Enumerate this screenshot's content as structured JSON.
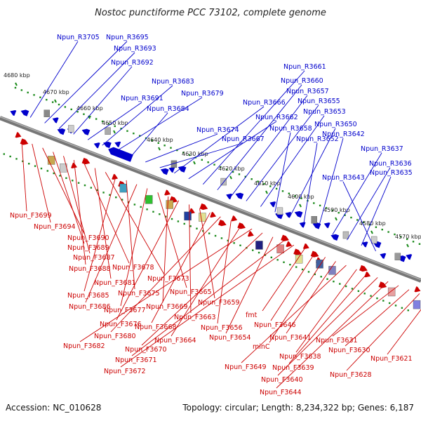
{
  "title": "Nostoc punctiforme PCC 73102, complete genome",
  "accession": "Accession: NC_010628",
  "summary": "Topology: circular; Length: 8,234,322 bp; Genes: 6,187",
  "colors": {
    "reverse": "#0000cc",
    "forward": "#cc0000",
    "tick": "#1a8a1a",
    "backbone": "#777777"
  },
  "ticks": [
    "4680 kbp",
    "4670 kbp",
    "4660 kbp",
    "4650 kbp",
    "4640 kbp",
    "4630 kbp",
    "4620 kbp",
    "4610 kbp",
    "4600 kbp",
    "4590 kbp",
    "4580 kbp",
    "4570 kbp"
  ],
  "reverse_labels": [
    "Npun_R3705",
    "Npun_R3695",
    "Npun_R3693",
    "Npun_R3692",
    "Npun_R3691",
    "Npun_R3683",
    "Npun_R3679",
    "Npun_R3684",
    "Npun_R3674",
    "Npun_R3667",
    "Npun_R3666",
    "Npun_R3662",
    "Npun_R3661",
    "Npun_R3660",
    "Npun_R3657",
    "Npun_R3655",
    "Npun_R3653",
    "Npun_R3658",
    "Npun_R3650",
    "Npun_R3652",
    "Npun_R3642",
    "Npun_R3637",
    "Npun_R3636",
    "Npun_R3635",
    "Npun_R3643"
  ],
  "forward_labels": [
    "Npun_F3699",
    "Npun_F3694",
    "Npun_F3690",
    "Npun_F3689",
    "Npun_F3687",
    "Npun_F3688",
    "Npun_F3678",
    "Npun_F3681",
    "Npun_F3673",
    "Npun_F3685",
    "Npun_F3675",
    "Npun_F3686",
    "Npun_F3677",
    "Npun_F3665",
    "Npun_F3669",
    "Npun_F3676",
    "Npun_F3663",
    "Npun_F3659",
    "Npun_F3668",
    "Npun_F3680",
    "Npun_F3656",
    "Npun_F3664",
    "Npun_F3682",
    "Npun_F3670",
    "Npun_F3654",
    "Npun_F3671",
    "Npun_F3672",
    "fmt",
    "Npun_F3646",
    "minC",
    "Npun_F3641",
    "Npun_F3649",
    "Npun_F3638",
    "Npun_F3639",
    "Npun_F3640",
    "Npun_F3644",
    "Npun_F3631",
    "Npun_F3630",
    "Npun_F3628",
    "Npun_F3621"
  ]
}
